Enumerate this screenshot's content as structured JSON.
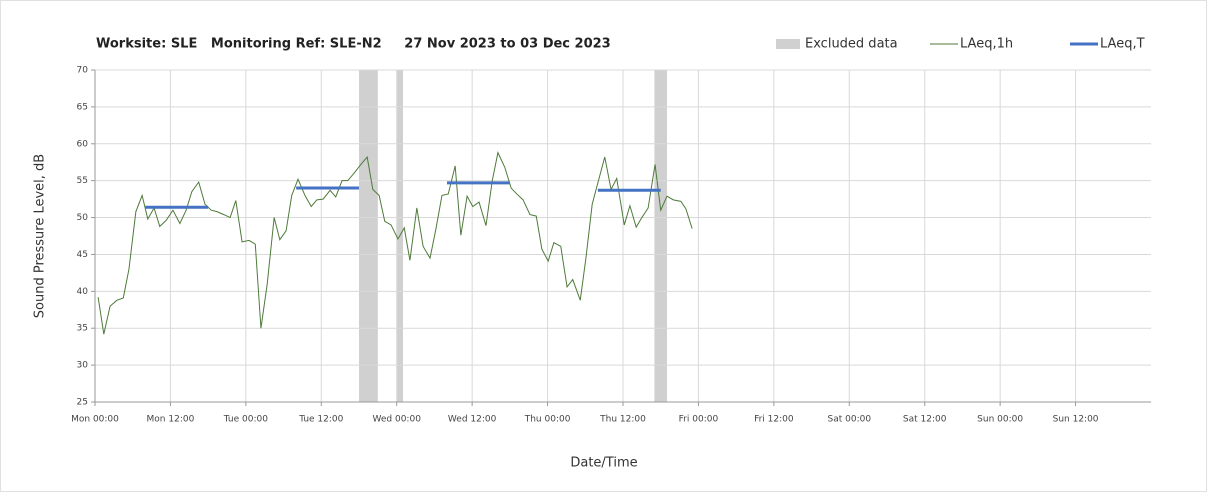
{
  "chart_data": {
    "type": "line",
    "title": "Worksite: SLE   Monitoring Ref: SLE-N2     27 Nov 2023 to 03 Dec 2023",
    "xlabel": "Date/Time",
    "ylabel": "Sound Pressure Level, dB",
    "xlim": [
      0,
      168
    ],
    "xticks": [
      {
        "value": 0,
        "label": "Mon 00:00"
      },
      {
        "value": 12,
        "label": "Mon 12:00"
      },
      {
        "value": 24,
        "label": "Tue 00:00"
      },
      {
        "value": 36,
        "label": "Tue 12:00"
      },
      {
        "value": 48,
        "label": "Wed 00:00"
      },
      {
        "value": 60,
        "label": "Wed 12:00"
      },
      {
        "value": 72,
        "label": "Thu 00:00"
      },
      {
        "value": 84,
        "label": "Thu 12:00"
      },
      {
        "value": 96,
        "label": "Fri 00:00"
      },
      {
        "value": 108,
        "label": "Fri 12:00"
      },
      {
        "value": 120,
        "label": "Sat 00:00"
      },
      {
        "value": 132,
        "label": "Sat 12:00"
      },
      {
        "value": 144,
        "label": "Sun 00:00"
      },
      {
        "value": 156,
        "label": "Sun 12:00"
      }
    ],
    "ylim": [
      25,
      70
    ],
    "yticks": [
      25,
      30,
      35,
      40,
      45,
      50,
      55,
      60,
      65,
      70
    ],
    "grid": true,
    "legend": "top-right",
    "excluded": {
      "name": "Excluded data",
      "color": "#d0d0d0",
      "ranges": [
        {
          "start": 42,
          "end": 45
        },
        {
          "start": 48,
          "end": 49
        },
        {
          "start": 89,
          "end": 91
        }
      ]
    },
    "series": [
      {
        "name": "LAeq,1h",
        "color": "#4e7a3a",
        "x": [
          0.5,
          1.4,
          2.4,
          3.5,
          4.5,
          5.4,
          6.5,
          7.5,
          8.4,
          9.4,
          10.3,
          11.3,
          12.4,
          13.5,
          14.5,
          15.4,
          16.5,
          17.5,
          18.5,
          19.4,
          20.5,
          21.5,
          22.4,
          23.4,
          24.5,
          25.5,
          26.4,
          27.4,
          28.5,
          29.4,
          30.4,
          31.3,
          32.3,
          33.4,
          34.4,
          35.3,
          36.3,
          37.4,
          38.3,
          39.3,
          40.2,
          41.2,
          42.3,
          43.3,
          44.2,
          45.2,
          46.1,
          47.1,
          48.2,
          49.2,
          50.1,
          51.2,
          52.2,
          53.3,
          54.2,
          55.2,
          56.2,
          57.3,
          58.2,
          59.2,
          60.1,
          61.1,
          62.2,
          63.2,
          64.1,
          65.2,
          66.2,
          67.1,
          68.1,
          69.2,
          70.2,
          71.1,
          72.1,
          73.0,
          74.1,
          75.1,
          76.0,
          77.2,
          78.1,
          79.1,
          80.0,
          81.1,
          82.1,
          83.0,
          84.2,
          85.1,
          86.1,
          87.0,
          88.0,
          89.1,
          90.0,
          91.0,
          92.0,
          93.2,
          94.0,
          95.0
        ],
        "values": [
          39.2,
          34.2,
          38,
          38.8,
          39.1,
          43,
          50.8,
          53,
          49.8,
          51.3,
          48.8,
          49.6,
          51,
          49.2,
          51,
          53.5,
          54.8,
          51.8,
          51,
          50.8,
          50.4,
          50,
          52.3,
          46.7,
          46.9,
          46.4,
          35,
          41,
          50,
          47,
          48.2,
          53,
          55.2,
          53,
          51.5,
          52.4,
          52.5,
          53.7,
          52.8,
          55,
          55,
          56,
          57.2,
          58.2,
          53.8,
          53,
          49.5,
          49,
          47.1,
          48.6,
          44.2,
          51.3,
          46.1,
          44.5,
          48.3,
          53,
          53.2,
          57,
          47.6,
          52.9,
          51.5,
          52.1,
          48.9,
          55,
          58.8,
          56.8,
          54,
          53.2,
          52.4,
          50.4,
          50.2,
          45.7,
          44.1,
          46.6,
          46.1,
          40.6,
          41.6,
          38.8,
          44.5,
          51.8,
          54.7,
          58.2,
          53.8,
          55.3,
          49,
          51.6,
          48.7,
          50,
          51.3,
          57.2,
          51,
          52.9,
          52.4,
          52.2,
          51.2,
          48.5
        ]
      },
      {
        "name": "LAeq,T",
        "color": "#4472c4",
        "segments": [
          {
            "start": 8,
            "end": 18,
            "value": 51.4
          },
          {
            "start": 32,
            "end": 42,
            "value": 54.0
          },
          {
            "start": 56,
            "end": 66,
            "value": 54.7
          },
          {
            "start": 80,
            "end": 90,
            "value": 53.7
          }
        ]
      }
    ]
  }
}
